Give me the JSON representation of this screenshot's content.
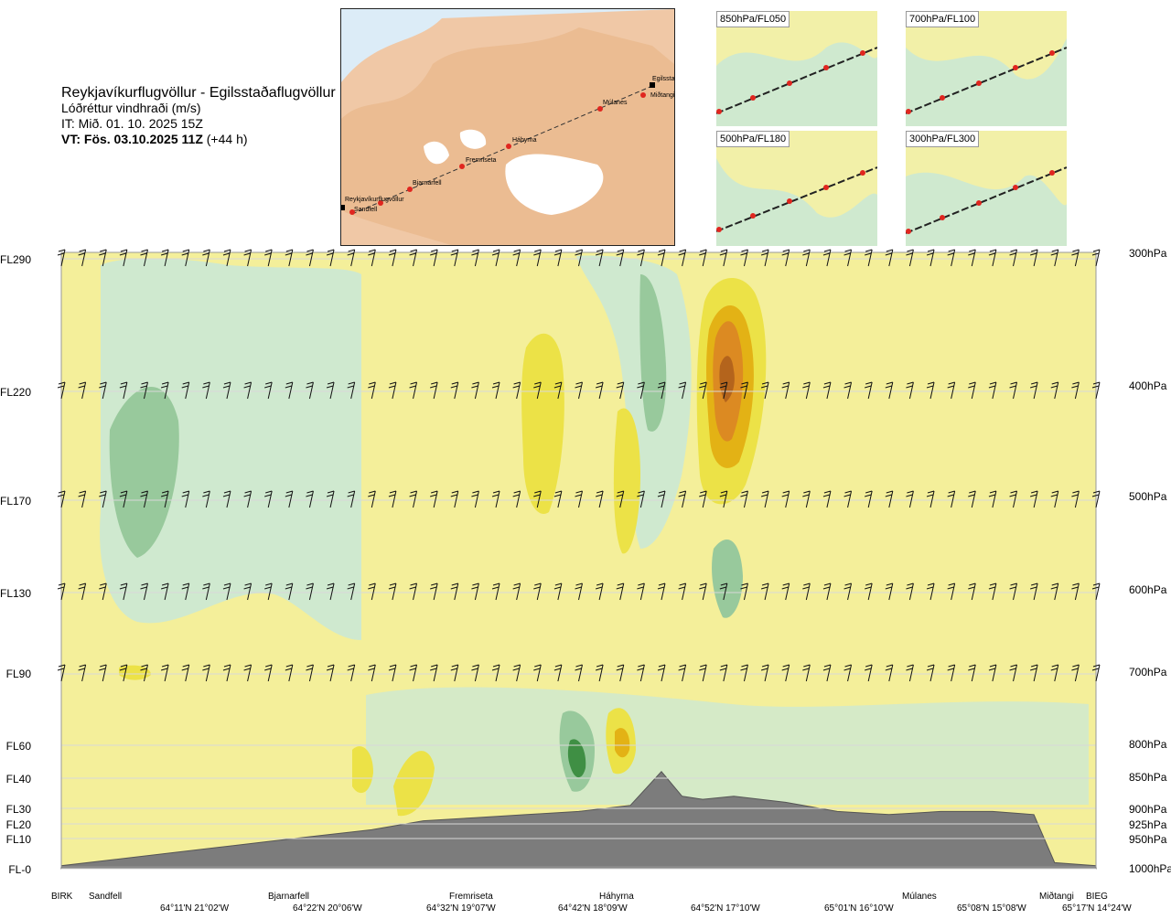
{
  "header": {
    "route": "Reykjavíkurflugvöllur - Egilsstaðaflugvöllur",
    "parameter": "Lóðréttur vindhraði (m/s)",
    "issue_time": "IT: Mið. 01. 10. 2025 15Z",
    "valid_time_bold": "VT: Fös. 03.10.2025 11Z",
    "valid_time_lead": "(+44 h)"
  },
  "route_map": {
    "waypoints": [
      "Reykjavíkurflugvöllur",
      "Sandfell",
      "Bjarnarfell",
      "Fremriseta",
      "Háhyrna",
      "Múlanes",
      "Miðtangi",
      "Egilsstaðir"
    ]
  },
  "mini_maps": [
    {
      "label": "850hPa/FL050"
    },
    {
      "label": "700hPa/FL100"
    },
    {
      "label": "500hPa/FL180"
    },
    {
      "label": "300hPa/FL300"
    }
  ],
  "flight_levels": [
    "FL290",
    "FL220",
    "FL170",
    "FL130",
    "FL90",
    "FL60",
    "FL40",
    "FL30",
    "FL20",
    "FL10",
    "FL-0"
  ],
  "pressure_levels": [
    "300hPa",
    "400hPa",
    "500hPa",
    "600hPa",
    "700hPa",
    "800hPa",
    "850hPa",
    "900hPa",
    "925hPa",
    "950hPa",
    "1000hPa"
  ],
  "locations": [
    "BIRK",
    "Sandfell",
    "Bjarnarfell",
    "Fremriseta",
    "Háhyrna",
    "Múlanes",
    "Miðtangi",
    "BIEG"
  ],
  "coordinates": [
    "64°11'N 21°02'W",
    "64°22'N 20°06'W",
    "64°32'N 19°07'W",
    "64°42'N 18°09'W",
    "64°52'N 17°10'W",
    "65°01'N 16°10'W",
    "65°08'N 15°08'W",
    "65°17'N 14°24'W"
  ],
  "colors": {
    "strong_down": "#3f8f44",
    "down": "#98c99c",
    "weak_down": "#cfe9cf",
    "near_zero": "#fdfde4",
    "weak_up": "#f4ef9a",
    "up": "#ece247",
    "strong_up": "#e3b215",
    "stronger_up": "#dc8a22",
    "strongest_up": "#b4641c",
    "terrain": "#7c7c7c"
  },
  "chart_data": {
    "type": "heatmap",
    "title": "Lóðréttur vindhraði (m/s)",
    "x_labels": [
      "BIRK",
      "Sandfell",
      "Bjarnarfell",
      "Fremriseta",
      "Háhyrna",
      "Múlanes",
      "Miðtangi",
      "BIEG"
    ],
    "y_levels_hPa": [
      300,
      400,
      500,
      600,
      700,
      800,
      850,
      900,
      925,
      950,
      1000
    ],
    "terrain_profile_hPa": {
      "x": [
        0,
        0.05,
        0.1,
        0.15,
        0.2,
        0.25,
        0.3,
        0.35,
        0.4,
        0.45,
        0.5,
        0.55,
        0.58,
        0.6,
        0.62,
        0.65,
        0.7,
        0.75,
        0.8,
        0.85,
        0.9,
        0.94,
        0.96,
        1.0
      ],
      "p": [
        995,
        985,
        975,
        965,
        955,
        945,
        935,
        920,
        915,
        910,
        905,
        895,
        840,
        880,
        885,
        880,
        890,
        905,
        910,
        905,
        905,
        910,
        990,
        995
      ]
    },
    "max_updraft_region": {
      "near": "Háhyrna-Múlanes",
      "level_hPa": 400
    },
    "max_downdraft_region": {
      "near": "Háhyrna",
      "level_hPa": 825
    }
  }
}
